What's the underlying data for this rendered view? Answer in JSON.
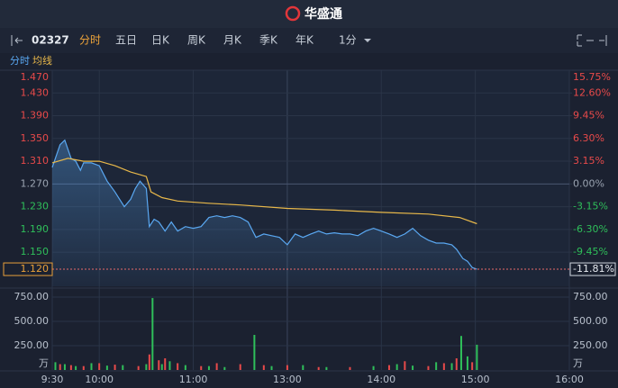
{
  "app": {
    "brand": "华盛通",
    "code": "02327",
    "tabs": [
      "分时",
      "五日",
      "日K",
      "周K",
      "月K",
      "季K",
      "年K"
    ],
    "interval": "1分"
  },
  "chart_data": {
    "type": "intraday",
    "series": [
      {
        "name": "分时",
        "color": "#5aa8f2",
        "x": [
          0,
          3,
          5,
          8,
          10,
          12,
          15,
          18,
          20,
          25,
          30,
          35,
          40,
          43,
          46,
          50,
          53,
          56,
          60,
          62,
          65,
          68,
          72,
          76,
          80,
          85,
          90,
          95,
          100,
          105,
          110,
          115,
          120,
          125,
          130,
          135,
          140,
          145,
          150,
          155,
          160,
          165,
          170,
          175,
          180,
          185,
          190,
          195,
          200,
          205,
          210,
          215,
          220,
          225,
          230,
          235,
          240,
          245,
          250,
          255,
          258,
          262,
          265,
          268,
          271
        ],
        "values": [
          1.299,
          1.323,
          1.339,
          1.347,
          1.331,
          1.315,
          1.31,
          1.294,
          1.307,
          1.307,
          1.302,
          1.275,
          1.256,
          1.243,
          1.23,
          1.243,
          1.262,
          1.275,
          1.262,
          1.195,
          1.208,
          1.203,
          1.187,
          1.203,
          1.187,
          1.195,
          1.192,
          1.195,
          1.211,
          1.214,
          1.211,
          1.214,
          1.211,
          1.203,
          1.176,
          1.182,
          1.179,
          1.176,
          1.163,
          1.182,
          1.176,
          1.182,
          1.187,
          1.182,
          1.184,
          1.182,
          1.182,
          1.179,
          1.187,
          1.192,
          1.187,
          1.182,
          1.176,
          1.182,
          1.192,
          1.179,
          1.171,
          1.166,
          1.166,
          1.163,
          1.155,
          1.139,
          1.134,
          1.123,
          1.12
        ]
      },
      {
        "name": "均线",
        "color": "#e8b84a",
        "x": [
          0,
          10,
          20,
          30,
          40,
          50,
          60,
          63,
          70,
          80,
          100,
          120,
          150,
          180,
          210,
          240,
          260,
          271
        ],
        "values": [
          1.307,
          1.315,
          1.31,
          1.31,
          1.302,
          1.291,
          1.283,
          1.256,
          1.246,
          1.24,
          1.236,
          1.233,
          1.227,
          1.224,
          1.22,
          1.217,
          1.211,
          1.2
        ]
      }
    ],
    "volume_series": [
      {
        "color": "#2fbf5a",
        "x": [
          2,
          8,
          15,
          25,
          35,
          45,
          60,
          64,
          70,
          75,
          85,
          100,
          110,
          129,
          140,
          160,
          175,
          205,
          220,
          230,
          245,
          255,
          261,
          265,
          271
        ],
        "values": [
          80,
          60,
          40,
          70,
          45,
          50,
          60,
          740,
          60,
          90,
          50,
          40,
          30,
          361,
          40,
          50,
          30,
          40,
          60,
          45,
          80,
          70,
          350,
          140,
          260
        ]
      },
      {
        "color": "#e84a4a",
        "x": [
          5,
          12,
          20,
          30,
          40,
          55,
          62,
          68,
          72,
          80,
          95,
          105,
          120,
          135,
          150,
          170,
          190,
          215,
          225,
          240,
          250,
          258,
          268
        ],
        "values": [
          60,
          50,
          40,
          70,
          55,
          40,
          160,
          100,
          120,
          70,
          40,
          70,
          60,
          50,
          50,
          30,
          30,
          50,
          90,
          40,
          70,
          120,
          80
        ]
      }
    ],
    "xlim": [
      0,
      330
    ],
    "xticks": [
      {
        "value": 0,
        "label": "9:30"
      },
      {
        "value": 30,
        "label": "10:00"
      },
      {
        "value": 90,
        "label": "11:00"
      },
      {
        "value": 150,
        "label": "13:00"
      },
      {
        "value": 210,
        "label": "14:00"
      },
      {
        "value": 270,
        "label": "15:00"
      },
      {
        "value": 330,
        "label": "16:00"
      }
    ],
    "ylim": [
      1.09,
      1.47
    ],
    "yticks": [
      {
        "value": 1.47,
        "label": "1.470"
      },
      {
        "value": 1.43,
        "label": "1.430"
      },
      {
        "value": 1.39,
        "label": "1.390"
      },
      {
        "value": 1.35,
        "label": "1.350"
      },
      {
        "value": 1.31,
        "label": "1.310"
      },
      {
        "value": 1.27,
        "label": "1.270"
      },
      {
        "value": 1.23,
        "label": "1.230"
      },
      {
        "value": 1.19,
        "label": "1.190"
      },
      {
        "value": 1.15,
        "label": "1.150"
      }
    ],
    "y2lim": [
      -14.17,
      15.75
    ],
    "y2ticks": [
      {
        "value": 15.75,
        "label": "15.75%"
      },
      {
        "value": 12.6,
        "label": "12.60%"
      },
      {
        "value": 9.45,
        "label": "9.45%"
      },
      {
        "value": 6.3,
        "label": "6.30%"
      },
      {
        "value": 3.15,
        "label": "3.15%"
      },
      {
        "value": 0,
        "label": "0.00%"
      },
      {
        "value": -3.15,
        "label": "-3.15%"
      },
      {
        "value": -6.3,
        "label": "-6.30%"
      },
      {
        "value": -9.45,
        "label": "-9.45%"
      }
    ],
    "last_price": {
      "value": 1.12,
      "label": "1.120"
    },
    "last_change": {
      "value": -11.81,
      "label": "-11.81%"
    },
    "volume_lim": [
      0,
      750
    ],
    "volume_ticks": [
      {
        "value": 750,
        "label": "750.00"
      },
      {
        "value": 500,
        "label": "500.00"
      },
      {
        "value": 250,
        "label": "250.00"
      }
    ],
    "volume_unit": "万",
    "up_color": "#e84a4a",
    "down_color": "#2fbf5a"
  }
}
